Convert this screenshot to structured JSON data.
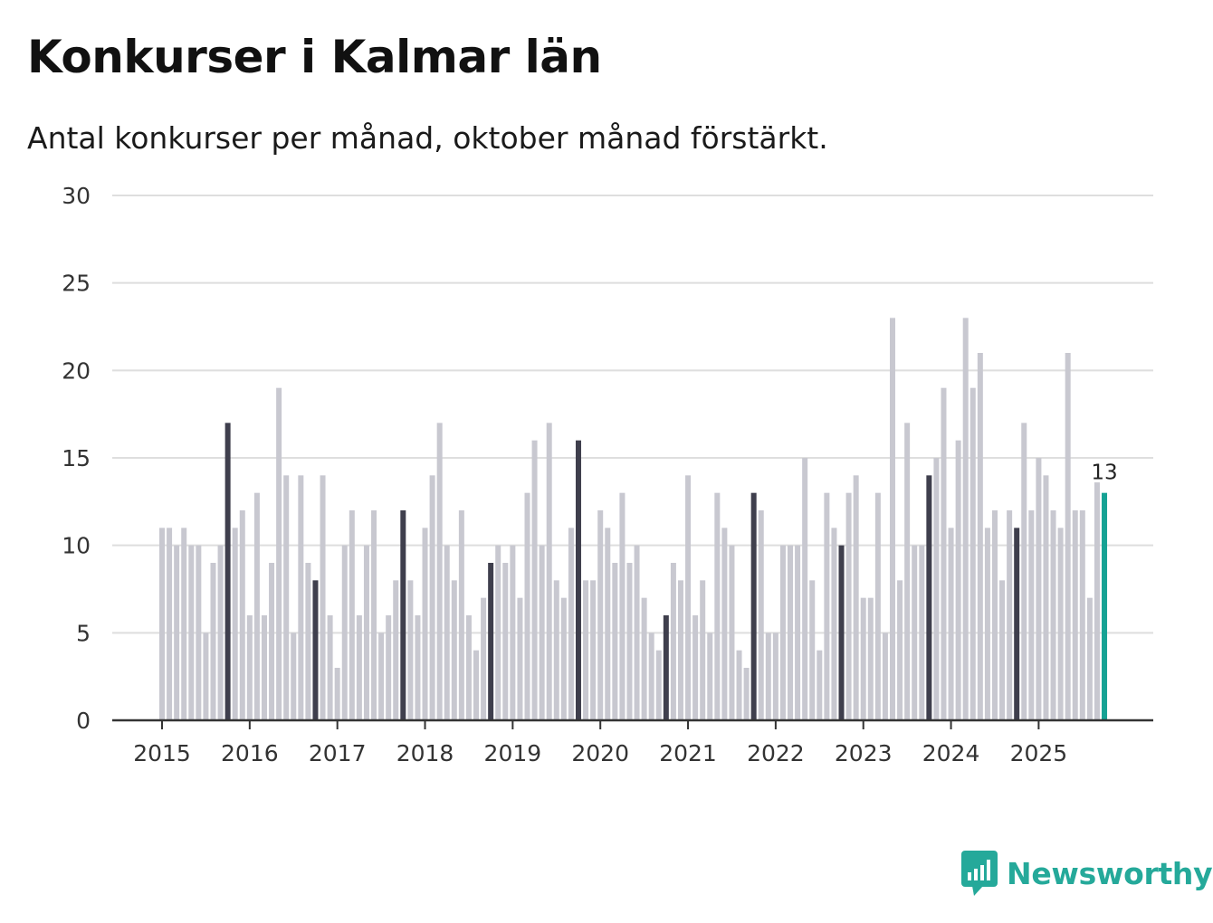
{
  "title": "Konkurser i Kalmar län",
  "subtitle": "Antal konkurser per månad, oktober månad förstärkt.",
  "logo": {
    "text": "Newsworthy",
    "icon": "bar-chart-speech-bubble-icon"
  },
  "colors": {
    "regular": "#c8c8d0",
    "october": "#3f3f4d",
    "latest": "#15a294",
    "grid": "#dedede",
    "axis": "#333333"
  },
  "chart_data": {
    "type": "bar",
    "title": "Konkurser i Kalmar län",
    "subtitle": "Antal konkurser per månad, oktober månad förstärkt.",
    "xlabel": "",
    "ylabel": "",
    "ylim": [
      0,
      30
    ],
    "yticks": [
      0,
      5,
      10,
      15,
      20,
      25,
      30
    ],
    "grid": true,
    "start": "2015-01",
    "xticks": [
      "2015",
      "2016",
      "2017",
      "2018",
      "2019",
      "2020",
      "2021",
      "2022",
      "2023",
      "2024",
      "2025"
    ],
    "highlight": "october",
    "latest_label": "13",
    "values": [
      11,
      11,
      10,
      11,
      10,
      10,
      5,
      9,
      10,
      17,
      11,
      12,
      6,
      13,
      6,
      9,
      19,
      14,
      5,
      14,
      9,
      8,
      14,
      6,
      3,
      10,
      12,
      6,
      10,
      12,
      5,
      6,
      8,
      12,
      8,
      6,
      11,
      14,
      17,
      10,
      8,
      12,
      6,
      4,
      7,
      9,
      10,
      9,
      10,
      7,
      13,
      16,
      10,
      17,
      8,
      7,
      11,
      16,
      8,
      8,
      12,
      11,
      9,
      13,
      9,
      10,
      7,
      5,
      4,
      6,
      9,
      8,
      14,
      6,
      8,
      5,
      13,
      11,
      10,
      4,
      3,
      13,
      12,
      5,
      5,
      10,
      10,
      10,
      15,
      8,
      4,
      13,
      11,
      10,
      13,
      14,
      7,
      7,
      13,
      5,
      23,
      8,
      17,
      10,
      10,
      14,
      15,
      19,
      11,
      16,
      23,
      19,
      21,
      11,
      12,
      8,
      12,
      11,
      17,
      12,
      15,
      14,
      12,
      11,
      21,
      12,
      12,
      7,
      13.6,
      13
    ]
  }
}
